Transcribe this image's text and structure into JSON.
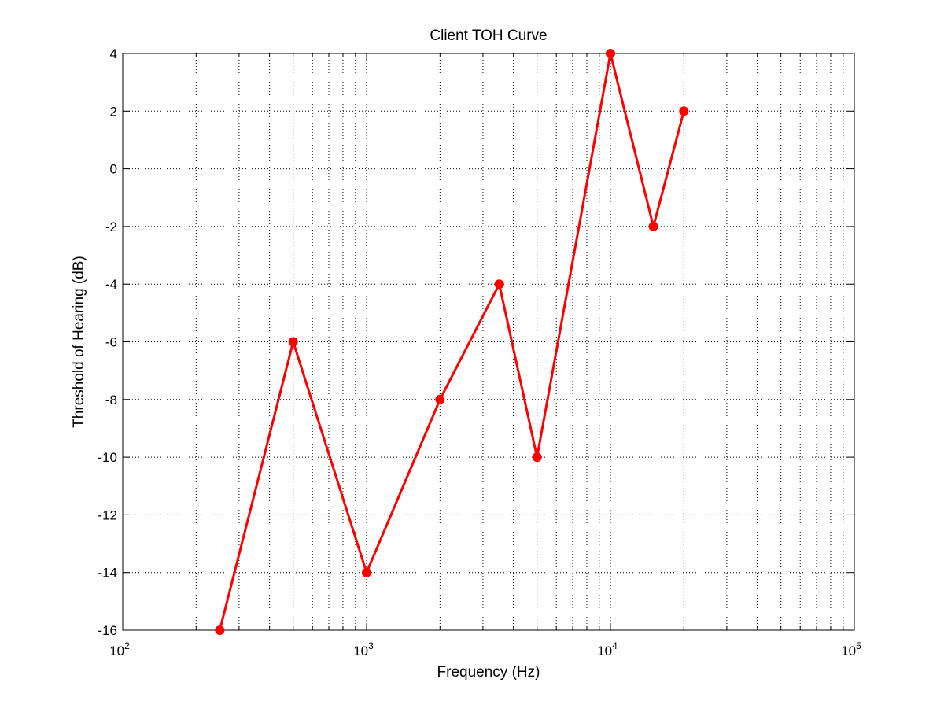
{
  "chart_data": {
    "type": "line",
    "title": "Client TOH Curve",
    "xlabel": "Frequency (Hz)",
    "ylabel": "Threshold of Hearing (dB)",
    "xscale": "log",
    "xlim": [
      100,
      100000
    ],
    "ylim": [
      -16,
      4
    ],
    "grid": true,
    "x_ticks": [
      {
        "value": 100,
        "base": "10",
        "exp": "2"
      },
      {
        "value": 1000,
        "base": "10",
        "exp": "3"
      },
      {
        "value": 10000,
        "base": "10",
        "exp": "4"
      },
      {
        "value": 100000,
        "base": "10",
        "exp": "5"
      }
    ],
    "y_ticks": [
      4,
      2,
      0,
      -2,
      -4,
      -6,
      -8,
      -10,
      -12,
      -14,
      -16
    ],
    "y_tick_labels": [
      "4",
      "2",
      "0",
      "-2",
      "-4",
      "-6",
      "-8",
      "-10",
      "-12",
      "-14",
      "-16"
    ],
    "series": [
      {
        "color": "#ff0000",
        "marker": "circle",
        "x": [
          250,
          500,
          1000,
          2000,
          3500,
          5000,
          10000,
          15000,
          20000
        ],
        "y": [
          -16,
          -6,
          -14,
          -8,
          -4,
          -10,
          4,
          -2,
          2
        ]
      }
    ]
  }
}
